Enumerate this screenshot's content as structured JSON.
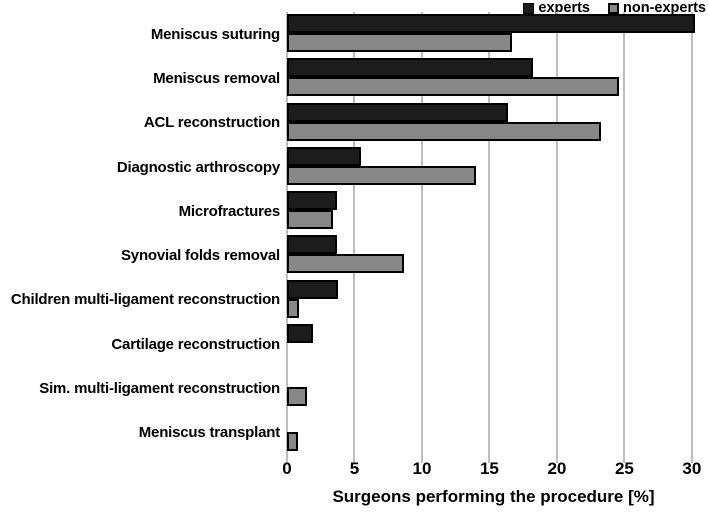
{
  "legend": {
    "items": [
      {
        "label": "experts",
        "color": "#1c1c1c"
      },
      {
        "label": "non-experts",
        "color": "#878787"
      }
    ]
  },
  "chart_data": {
    "type": "bar",
    "orientation": "horizontal",
    "title": "",
    "xlabel": "Surgeons performing the procedure [%]",
    "ylabel": "",
    "categories": [
      "Meniscus suturing",
      "Meniscus removal",
      "ACL reconstruction",
      "Diagnostic arthroscopy",
      "Microfractures",
      "Synovial folds removal",
      "Children multi-ligament reconstruction",
      "Cartilage reconstruction",
      "Sim. multi-ligament reconstruction",
      "Meniscus transplant"
    ],
    "series": [
      {
        "name": "experts",
        "color": "#1c1c1c",
        "values": [
          30.2,
          18.2,
          16.4,
          5.5,
          3.7,
          3.7,
          3.8,
          1.9,
          0,
          0
        ]
      },
      {
        "name": "non-experts",
        "color": "#878787",
        "values": [
          16.7,
          24.6,
          23.3,
          14.0,
          3.4,
          8.7,
          0.9,
          0,
          1.5,
          0.8
        ]
      }
    ],
    "xticks": [
      0,
      5,
      10,
      15,
      20,
      25,
      30
    ],
    "xlim": [
      0,
      30.6
    ],
    "grid": true,
    "gridline_color": "#bdbdbd",
    "legend_position": "top-right"
  }
}
